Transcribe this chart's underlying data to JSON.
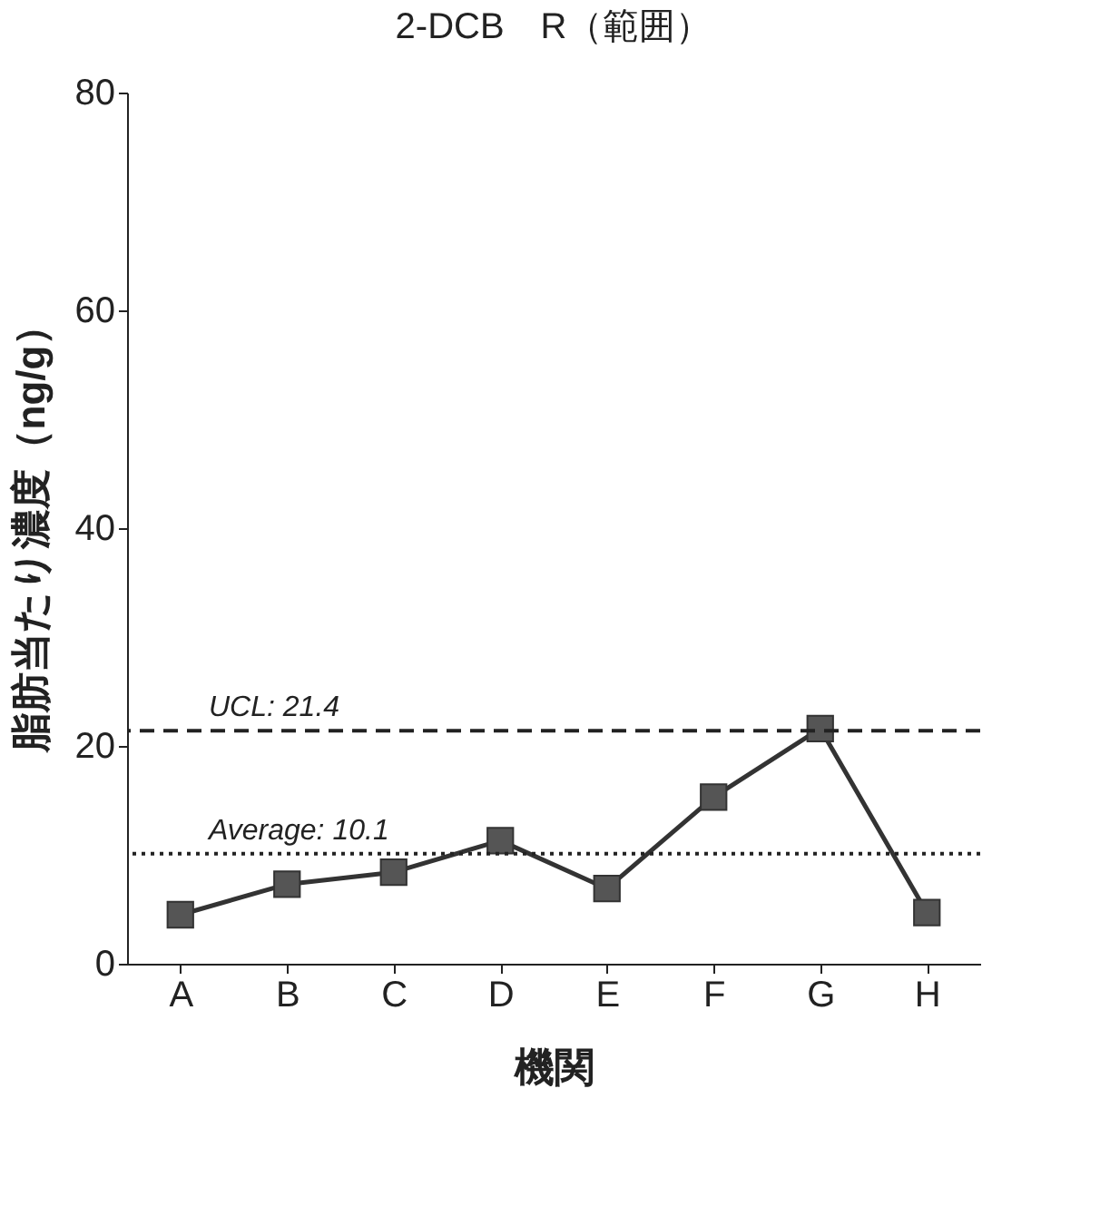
{
  "chart_data": {
    "type": "line",
    "title": "2-DCB　R（範囲）",
    "xlabel": "機関",
    "ylabel": "脂肪当たり濃度（ng/g）",
    "categories": [
      "A",
      "B",
      "C",
      "D",
      "E",
      "F",
      "G",
      "H"
    ],
    "series": [
      {
        "color": "#555555",
        "values": [
          4.5,
          7.3,
          8.4,
          11.3,
          6.9,
          15.3,
          21.6,
          4.7
        ]
      }
    ],
    "ylim": [
      0,
      80
    ],
    "yticks": [
      0,
      20,
      40,
      60,
      80
    ],
    "grid": false,
    "marker": "square",
    "line_style": "solid",
    "ref_lines": [
      {
        "axis": "y",
        "value": 21.4,
        "label": "UCL: 21.4",
        "line_style": "dashed",
        "color": "#222222"
      },
      {
        "axis": "y",
        "value": 10.1,
        "label": "Average: 10.1",
        "line_style": "dotted",
        "color": "#222222"
      }
    ]
  }
}
